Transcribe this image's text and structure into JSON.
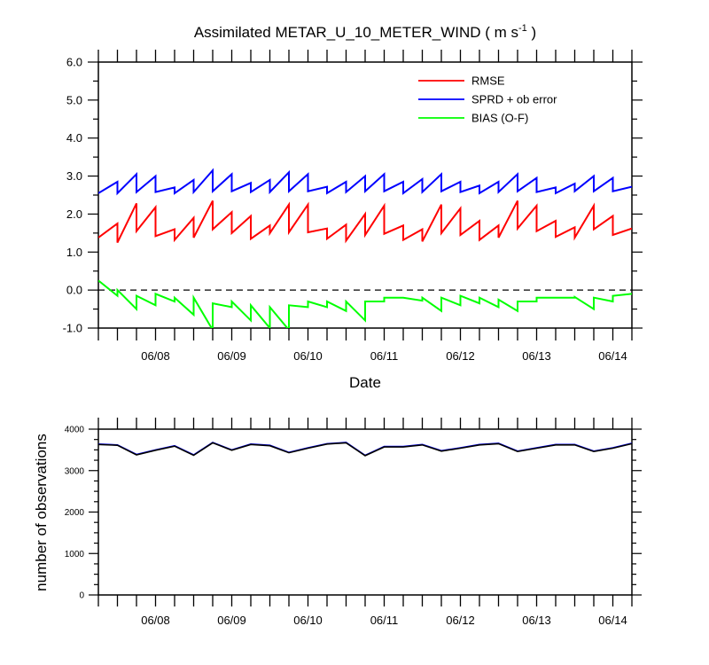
{
  "chart_data": [
    {
      "type": "line",
      "title_main": "Assimilated METAR_U_10_METER_WIND ( m s",
      "title_sup": "-1",
      "title_end": " )",
      "xlabel": "Date",
      "ylabel": "",
      "ylim": [
        -1.0,
        6.0
      ],
      "yticks": [
        "-1.0",
        "0.0",
        "1.0",
        "2.0",
        "3.0",
        "4.0",
        "5.0",
        "6.0"
      ],
      "xlim": [
        7.25,
        14.25
      ],
      "x_tick_labels": [
        "06/08",
        "06/09",
        "06/10",
        "06/11",
        "06/12",
        "06/13",
        "06/14"
      ],
      "zero_line": true,
      "legend_position": "top-right",
      "series": [
        {
          "name": "RMSE",
          "color": "#ff0000",
          "x": [
            7.25,
            7.5,
            7.5,
            7.75,
            7.75,
            8.0,
            8.0,
            8.25,
            8.25,
            8.5,
            8.5,
            8.75,
            8.75,
            9.0,
            9.0,
            9.25,
            9.25,
            9.5,
            9.5,
            9.75,
            9.75,
            10.0,
            10.0,
            10.25,
            10.25,
            10.5,
            10.5,
            10.75,
            10.75,
            11.0,
            11.0,
            11.25,
            11.25,
            11.5,
            11.5,
            11.75,
            11.75,
            12.0,
            12.0,
            12.25,
            12.25,
            12.5,
            12.5,
            12.75,
            12.75,
            13.0,
            13.0,
            13.25,
            13.25,
            13.5,
            13.5,
            13.75,
            13.75,
            14.0,
            14.0,
            14.25
          ],
          "y": [
            1.38,
            1.75,
            1.25,
            2.28,
            1.55,
            2.18,
            1.42,
            1.6,
            1.32,
            1.9,
            1.38,
            2.35,
            1.6,
            2.05,
            1.5,
            1.95,
            1.35,
            1.7,
            1.5,
            2.25,
            1.52,
            2.25,
            1.52,
            1.62,
            1.35,
            1.72,
            1.3,
            2.0,
            1.45,
            2.22,
            1.48,
            1.7,
            1.32,
            1.6,
            1.28,
            2.25,
            1.5,
            2.15,
            1.45,
            1.82,
            1.32,
            1.7,
            1.38,
            2.35,
            1.62,
            2.22,
            1.55,
            1.82,
            1.4,
            1.65,
            1.38,
            2.22,
            1.6,
            1.95,
            1.45,
            1.62
          ]
        },
        {
          "name": "SPRD + ob error",
          "color": "#0000ff",
          "x": [
            7.25,
            7.5,
            7.5,
            7.75,
            7.75,
            8.0,
            8.0,
            8.25,
            8.25,
            8.5,
            8.5,
            8.75,
            8.75,
            9.0,
            9.0,
            9.25,
            9.25,
            9.5,
            9.5,
            9.75,
            9.75,
            10.0,
            10.0,
            10.25,
            10.25,
            10.5,
            10.5,
            10.75,
            10.75,
            11.0,
            11.0,
            11.25,
            11.25,
            11.5,
            11.5,
            11.75,
            11.75,
            12.0,
            12.0,
            12.25,
            12.25,
            12.5,
            12.5,
            12.75,
            12.75,
            13.0,
            13.0,
            13.25,
            13.25,
            13.5,
            13.5,
            13.75,
            13.75,
            14.0,
            14.0,
            14.25
          ],
          "y": [
            2.55,
            2.85,
            2.55,
            3.05,
            2.58,
            3.0,
            2.58,
            2.7,
            2.55,
            2.9,
            2.58,
            3.15,
            2.6,
            3.05,
            2.6,
            2.82,
            2.58,
            2.9,
            2.58,
            3.1,
            2.6,
            3.05,
            2.6,
            2.72,
            2.55,
            2.85,
            2.58,
            3.0,
            2.6,
            3.05,
            2.6,
            2.85,
            2.55,
            2.92,
            2.58,
            3.05,
            2.6,
            2.85,
            2.58,
            2.75,
            2.55,
            2.85,
            2.58,
            3.05,
            2.6,
            2.95,
            2.58,
            2.7,
            2.55,
            2.8,
            2.6,
            3.0,
            2.6,
            2.95,
            2.6,
            2.72
          ]
        },
        {
          "name": "BIAS (O-F)",
          "color": "#00ff00",
          "x": [
            7.25,
            7.5,
            7.5,
            7.75,
            7.75,
            8.0,
            8.0,
            8.25,
            8.25,
            8.5,
            8.5,
            8.75,
            8.75,
            9.0,
            9.0,
            9.25,
            9.25,
            9.5,
            9.5,
            9.75,
            9.75,
            10.0,
            10.0,
            10.25,
            10.25,
            10.5,
            10.5,
            10.75,
            10.75,
            11.0,
            11.0,
            11.25,
            11.25,
            11.5,
            11.5,
            11.75,
            11.75,
            12.0,
            12.0,
            12.25,
            12.25,
            12.5,
            12.5,
            12.75,
            12.75,
            13.0,
            13.0,
            13.25,
            13.25,
            13.5,
            13.5,
            13.75,
            13.75,
            14.0,
            14.0,
            14.25
          ],
          "y": [
            0.25,
            -0.15,
            0.0,
            -0.5,
            -0.15,
            -0.4,
            -0.1,
            -0.3,
            -0.2,
            -0.65,
            -0.2,
            -1.05,
            -0.35,
            -0.45,
            -0.3,
            -0.8,
            -0.4,
            -1.0,
            -0.45,
            -1.05,
            -0.4,
            -0.45,
            -0.3,
            -0.45,
            -0.3,
            -0.55,
            -0.3,
            -0.8,
            -0.3,
            -0.3,
            -0.2,
            -0.2,
            -0.2,
            -0.28,
            -0.2,
            -0.55,
            -0.2,
            -0.4,
            -0.15,
            -0.35,
            -0.2,
            -0.45,
            -0.25,
            -0.55,
            -0.3,
            -0.3,
            -0.2,
            -0.2,
            -0.2,
            -0.2,
            -0.18,
            -0.5,
            -0.2,
            -0.3,
            -0.15,
            -0.1
          ]
        }
      ]
    },
    {
      "type": "line",
      "ylabel": "number of observations",
      "ylim": [
        0,
        4000
      ],
      "yticks": [
        "0",
        "1000",
        "2000",
        "3000",
        "4000"
      ],
      "xlim": [
        7.25,
        14.25
      ],
      "x_tick_labels": [
        "06/08",
        "06/09",
        "06/10",
        "06/11",
        "06/12",
        "06/13",
        "06/14"
      ],
      "series": [
        {
          "color": "#0000ff",
          "x": [
            7.25,
            7.5,
            7.75,
            8.0,
            8.25,
            8.5,
            8.75,
            9.0,
            9.25,
            9.5,
            9.75,
            10.0,
            10.25,
            10.5,
            10.75,
            11.0,
            11.25,
            11.5,
            11.75,
            12.0,
            12.25,
            12.5,
            12.75,
            13.0,
            13.25,
            13.5,
            13.75,
            14.0,
            14.25
          ],
          "y": [
            3640,
            3620,
            3390,
            3500,
            3600,
            3380,
            3680,
            3500,
            3640,
            3610,
            3440,
            3550,
            3650,
            3680,
            3370,
            3580,
            3580,
            3630,
            3480,
            3550,
            3630,
            3660,
            3470,
            3550,
            3630,
            3630,
            3470,
            3550,
            3660
          ]
        },
        {
          "color": "#000000",
          "x": [
            7.25,
            7.5,
            7.75,
            8.0,
            8.25,
            8.5,
            8.75,
            9.0,
            9.25,
            9.5,
            9.75,
            10.0,
            10.25,
            10.5,
            10.75,
            11.0,
            11.25,
            11.5,
            11.75,
            12.0,
            12.25,
            12.5,
            12.75,
            13.0,
            13.25,
            13.5,
            13.75,
            14.0,
            14.25
          ],
          "y": [
            3630,
            3610,
            3380,
            3490,
            3590,
            3370,
            3670,
            3490,
            3630,
            3600,
            3430,
            3540,
            3640,
            3670,
            3360,
            3570,
            3570,
            3620,
            3470,
            3540,
            3620,
            3650,
            3460,
            3540,
            3620,
            3620,
            3460,
            3540,
            3650
          ]
        }
      ]
    }
  ]
}
